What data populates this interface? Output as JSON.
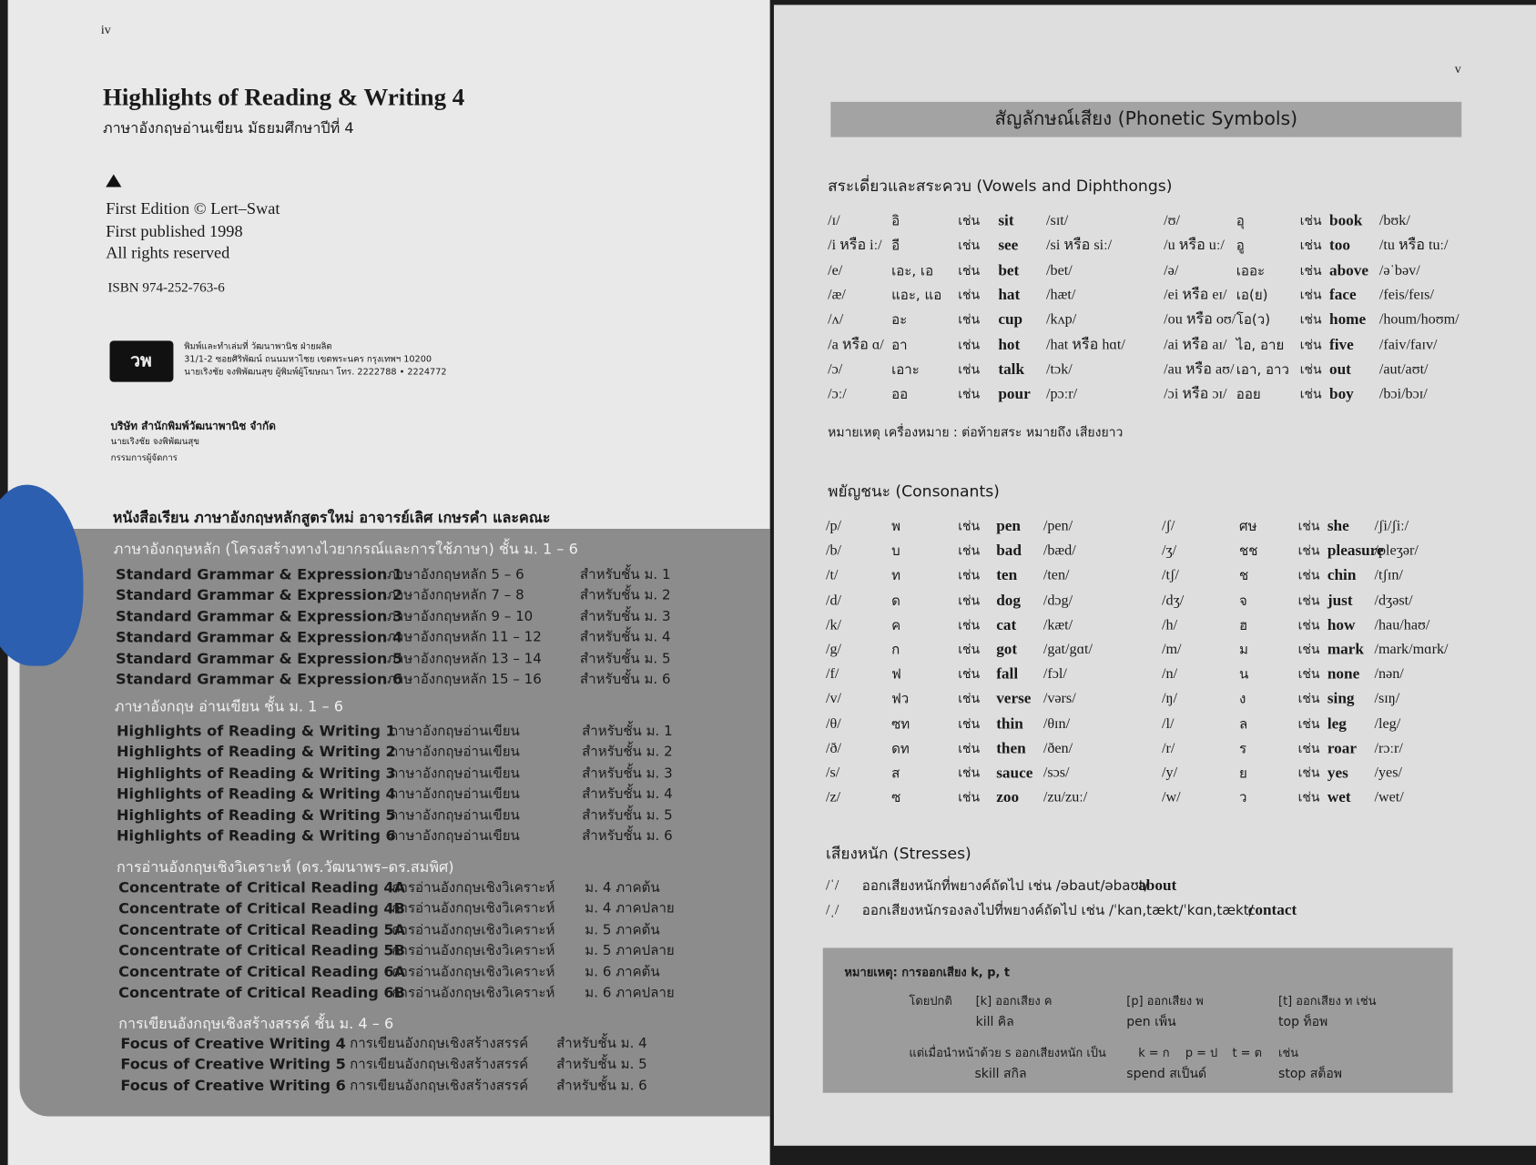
{
  "left_page": {
    "page_number": "iv",
    "title": "Highlights of Reading & Writing 4",
    "subtitle": "ภาษาอังกฤษอ่านเขียน มัธยมศึกษาปีที่ 4",
    "edition": [
      "First Edition © Lert–Swat",
      "First published 1998",
      "All rights reserved"
    ],
    "isbn": "ISBN 974-252-763-6",
    "logo": "วพ",
    "printer": [
      "พิมพ์และทำเล่มที่ วัฒนาพานิช ฝ่ายผลิต",
      "31/1-2 ซอยศิริพัฒน์ ถนนมหาไชย เขตพระนคร กรุงเทพฯ 10200",
      "นายเริงชัย จงพิพัฒนสุข ผู้พิมพ์ผู้โฆษณา โทร. 2222788 • 2224772"
    ],
    "publisher": [
      "บริษัท สำนักพิมพ์วัฒนาพานิช จำกัด",
      "นายเริงชัย จงพิพัฒนสุข",
      "กรรมการผู้จัดการ"
    ],
    "series_heading": "หนังสือเรียน ภาษาอังกฤษหลักสูตรใหม่ อาจารย์เลิศ เกษรคำ และคณะ",
    "groups": [
      {
        "heading": "ภาษาอังกฤษหลัก (โครงสร้างทางไวยากรณ์และการใช้ภาษา) ชั้น ม. 1 – 6",
        "rows": [
          [
            "Standard Grammar & Expression 1",
            "ภาษาอังกฤษหลัก 5 – 6",
            "สำหรับชั้น ม. 1"
          ],
          [
            "Standard Grammar & Expression 2",
            "ภาษาอังกฤษหลัก 7 – 8",
            "สำหรับชั้น ม. 2"
          ],
          [
            "Standard Grammar & Expression 3",
            "ภาษาอังกฤษหลัก 9 – 10",
            "สำหรับชั้น ม. 3"
          ],
          [
            "Standard Grammar & Expression 4",
            "ภาษาอังกฤษหลัก 11 – 12",
            "สำหรับชั้น ม. 4"
          ],
          [
            "Standard Grammar & Expression 5",
            "ภาษาอังกฤษหลัก 13 – 14",
            "สำหรับชั้น ม. 5"
          ],
          [
            "Standard Grammar & Expression 6",
            "ภาษาอังกฤษหลัก 15 – 16",
            "สำหรับชั้น ม. 6"
          ]
        ]
      },
      {
        "heading": "ภาษาอังกฤษ อ่านเขียน ชั้น ม. 1 – 6",
        "rows": [
          [
            "Highlights of Reading & Writing 1",
            "ภาษาอังกฤษอ่านเขียน",
            "สำหรับชั้น ม. 1"
          ],
          [
            "Highlights of Reading & Writing 2",
            "ภาษาอังกฤษอ่านเขียน",
            "สำหรับชั้น ม. 2"
          ],
          [
            "Highlights of Reading & Writing 3",
            "ภาษาอังกฤษอ่านเขียน",
            "สำหรับชั้น ม. 3"
          ],
          [
            "Highlights of Reading & Writing 4",
            "ภาษาอังกฤษอ่านเขียน",
            "สำหรับชั้น ม. 4"
          ],
          [
            "Highlights of Reading & Writing 5",
            "ภาษาอังกฤษอ่านเขียน",
            "สำหรับชั้น ม. 5"
          ],
          [
            "Highlights of Reading & Writing 6",
            "ภาษาอังกฤษอ่านเขียน",
            "สำหรับชั้น ม. 6"
          ]
        ]
      },
      {
        "heading": "การอ่านอังกฤษเชิงวิเคราะห์ (ดร.วัฒนาพร–ดร.สมพิศ)",
        "rows": [
          [
            "Concentrate of Critical Reading 4A",
            "การอ่านอังกฤษเชิงวิเคราะห์",
            "ม. 4 ภาคต้น"
          ],
          [
            "Concentrate of Critical Reading 4B",
            "การอ่านอังกฤษเชิงวิเคราะห์",
            "ม. 4 ภาคปลาย"
          ],
          [
            "Concentrate of Critical Reading 5A",
            "การอ่านอังกฤษเชิงวิเคราะห์",
            "ม. 5 ภาคต้น"
          ],
          [
            "Concentrate of Critical Reading 5B",
            "การอ่านอังกฤษเชิงวิเคราะห์",
            "ม. 5 ภาคปลาย"
          ],
          [
            "Concentrate of Critical Reading 6A",
            "การอ่านอังกฤษเชิงวิเคราะห์",
            "ม. 6 ภาคต้น"
          ],
          [
            "Concentrate of Critical Reading 6B",
            "การอ่านอังกฤษเชิงวิเคราะห์",
            "ม. 6 ภาคปลาย"
          ]
        ]
      },
      {
        "heading": "การเขียนอังกฤษเชิงสร้างสรรค์ ชั้น ม. 4 – 6",
        "rows": [
          [
            "Focus of Creative Writing 4",
            "การเขียนอังกฤษเชิงสร้างสรรค์",
            "สำหรับชั้น ม. 4"
          ],
          [
            "Focus of Creative Writing 5",
            "การเขียนอังกฤษเชิงสร้างสรรค์",
            "สำหรับชั้น ม. 5"
          ],
          [
            "Focus of Creative Writing 6",
            "การเขียนอังกฤษเชิงสร้างสรรค์",
            "สำหรับชั้น ม. 6"
          ]
        ]
      }
    ]
  },
  "right_page": {
    "page_number": "v",
    "title": "สัญลักษณ์เสียง (Phonetic Symbols)",
    "example_marker": "เช่น",
    "vowels": {
      "heading": "สระเดี่ยวและสระควบ (Vowels and Diphthongs)",
      "rows": [
        [
          [
            "/ɪ/",
            "อิ",
            "sit",
            "/sɪt/"
          ],
          [
            "/ʊ/",
            "อุ",
            "book",
            "/bʊk/"
          ]
        ],
        [
          [
            "/i หรือ iː/",
            "อี",
            "see",
            "/si หรือ siː/"
          ],
          [
            "/u หรือ uː/",
            "อู",
            "too",
            "/tu หรือ tuː/"
          ]
        ],
        [
          [
            "/e/",
            "เอะ, เอ",
            "bet",
            "/bet/"
          ],
          [
            "/ə/",
            "เออะ",
            "above",
            "/əˈbəv/"
          ]
        ],
        [
          [
            "/æ/",
            "แอะ, แอ",
            "hat",
            "/hæt/"
          ],
          [
            "/ei หรือ eɪ/",
            "เอ(ย)",
            "face",
            "/feis/feɪs/"
          ]
        ],
        [
          [
            "/ʌ/",
            "อะ",
            "cup",
            "/kʌp/"
          ],
          [
            "/ou หรือ oʊ/",
            "โอ(ว)",
            "home",
            "/houm/hoʊm/"
          ]
        ],
        [
          [
            "/a หรือ ɑ/",
            "อา",
            "hot",
            "/hat หรือ hɑt/"
          ],
          [
            "/ai หรือ aɪ/",
            "ไอ, อาย",
            "five",
            "/faiv/faɪv/"
          ]
        ],
        [
          [
            "/ɔ/",
            "เอาะ",
            "talk",
            "/tɔk/"
          ],
          [
            "/au หรือ aʊ/",
            "เอา, อาว",
            "out",
            "/aut/aʊt/"
          ]
        ],
        [
          [
            "/ɔː/",
            "ออ",
            "pour",
            "/pɔːr/"
          ],
          [
            "/ɔi หรือ ɔɪ/",
            "ออย",
            "boy",
            "/bɔi/bɔɪ/"
          ]
        ]
      ],
      "note": "หมายเหตุ เครื่องหมาย : ต่อท้ายสระ หมายถึง เสียงยาว"
    },
    "consonants": {
      "heading": "พยัญชนะ (Consonants)",
      "rows": [
        [
          [
            "/p/",
            "พ",
            "pen",
            "/pen/"
          ],
          [
            "/ʃ/",
            "ศษ",
            "she",
            "/ʃi/ʃiː/"
          ]
        ],
        [
          [
            "/b/",
            "บ",
            "bad",
            "/bæd/"
          ],
          [
            "/ʒ/",
            "ชช",
            "pleasure",
            "/pleʒər/"
          ]
        ],
        [
          [
            "/t/",
            "ท",
            "ten",
            "/ten/"
          ],
          [
            "/tʃ/",
            "ช",
            "chin",
            "/tʃɪn/"
          ]
        ],
        [
          [
            "/d/",
            "ด",
            "dog",
            "/dɔg/"
          ],
          [
            "/dʒ/",
            "จ",
            "just",
            "/dʒəst/"
          ]
        ],
        [
          [
            "/k/",
            "ค",
            "cat",
            "/kæt/"
          ],
          [
            "/h/",
            "ฮ",
            "how",
            "/hau/haʊ/"
          ]
        ],
        [
          [
            "/g/",
            "ก",
            "got",
            "/gat/gɑt/"
          ],
          [
            "/m/",
            "ม",
            "mark",
            "/mark/mɑrk/"
          ]
        ],
        [
          [
            "/f/",
            "ฟ",
            "fall",
            "/fɔl/"
          ],
          [
            "/n/",
            "น",
            "none",
            "/nən/"
          ]
        ],
        [
          [
            "/v/",
            "ฟว",
            "verse",
            "/vərs/"
          ],
          [
            "/ŋ/",
            "ง",
            "sing",
            "/sɪŋ/"
          ]
        ],
        [
          [
            "/θ/",
            "ซท",
            "thin",
            "/θɪn/"
          ],
          [
            "/l/",
            "ล",
            "leg",
            "/leg/"
          ]
        ],
        [
          [
            "/ð/",
            "ดท",
            "then",
            "/ðen/"
          ],
          [
            "/r/",
            "ร",
            "roar",
            "/rɔːr/"
          ]
        ],
        [
          [
            "/s/",
            "ส",
            "sauce",
            "/sɔs/"
          ],
          [
            "/y/",
            "ย",
            "yes",
            "/yes/"
          ]
        ],
        [
          [
            "/z/",
            "ซ",
            "zoo",
            "/zu/zuː/"
          ],
          [
            "/w/",
            "ว",
            "wet",
            "/wet/"
          ]
        ]
      ]
    },
    "stresses": {
      "heading": "เสียงหนัก (Stresses)",
      "rows": [
        [
          "/ˈ/",
          "ออกเสียงหนักที่พยางค์ถัดไป เช่น /əbaut/əbaʊt/",
          "about"
        ],
        [
          "/ˌ/",
          "ออกเสียงหนักรองลงไปที่พยางค์ถัดไป เช่น /ˈkan,tækt/ˈkɑn,tækt/",
          "contact"
        ]
      ]
    },
    "note_box": {
      "heading": "หมายเหตุ: การออกเสียง k, p, t",
      "normal_label": "โดยปกติ",
      "normal": [
        [
          "[k] ออกเสียง ค",
          "kill คิล"
        ],
        [
          "[p] ออกเสียง พ",
          "pen เพ็น"
        ],
        [
          "[t] ออกเสียง ท เช่น",
          "top ท็อพ"
        ]
      ],
      "s_label": "แต่เมื่อนำหน้าด้วย s ออกเสียงหนัก เป็น",
      "s_sounds": [
        "k = ก",
        "p = ป",
        "t = ต",
        "เช่น"
      ],
      "s_examples": [
        "skill สกิล",
        "spend สเป็นด์",
        "stop สต็อพ"
      ]
    }
  }
}
